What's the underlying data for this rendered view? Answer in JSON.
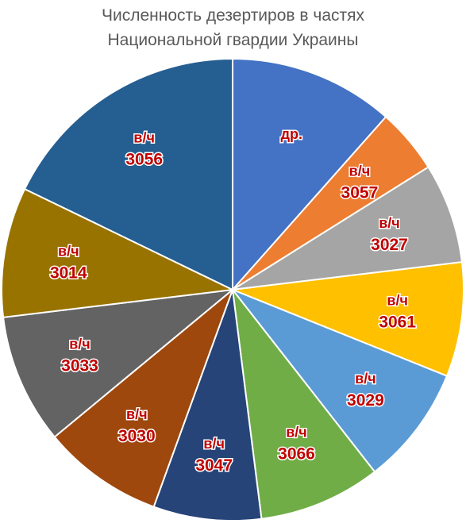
{
  "title_line1": "Численность дезертиров в частях",
  "title_line2": "Национальной гвардии Украины",
  "chart_data": {
    "type": "pie",
    "title": "Численность дезертиров в частях Национальной гвардии Украины",
    "start_angle_deg": 0,
    "direction": "clockwise",
    "slices": [
      {
        "label": "др.",
        "top": "др.",
        "bottom": "",
        "value": 12.7,
        "color": "#4472c4"
      },
      {
        "label": "в/ч 3057",
        "top": "в/ч",
        "bottom": "3057",
        "value": 5.0,
        "color": "#ed7d31"
      },
      {
        "label": "в/ч 3027",
        "top": "в/ч",
        "bottom": "3027",
        "value": 7.7,
        "color": "#a5a5a5"
      },
      {
        "label": "в/ч 3061",
        "top": "в/ч",
        "bottom": "3061",
        "value": 8.8,
        "color": "#ffc000"
      },
      {
        "label": "в/ч 3029",
        "top": "в/ч",
        "bottom": "3029",
        "value": 9.2,
        "color": "#5b9bd5"
      },
      {
        "label": "в/ч 3066",
        "top": "в/ч",
        "bottom": "3066",
        "value": 9.4,
        "color": "#70ad47"
      },
      {
        "label": "в/ч 3047",
        "top": "в/ч",
        "bottom": "3047",
        "value": 8.3,
        "color": "#264478"
      },
      {
        "label": "в/ч 3030",
        "top": "в/ч",
        "bottom": "3030",
        "value": 9.3,
        "color": "#9e480e"
      },
      {
        "label": "в/ч 3033",
        "top": "в/ч",
        "bottom": "3033",
        "value": 10.0,
        "color": "#636363"
      },
      {
        "label": "в/ч 3014",
        "top": "в/ч",
        "bottom": "3014",
        "value": 10.0,
        "color": "#997300"
      },
      {
        "label": "в/ч 3056",
        "top": "в/ч",
        "bottom": "3056",
        "value": 19.6,
        "color": "#255e91"
      }
    ],
    "label_color": "#c00000",
    "legend": "none"
  }
}
